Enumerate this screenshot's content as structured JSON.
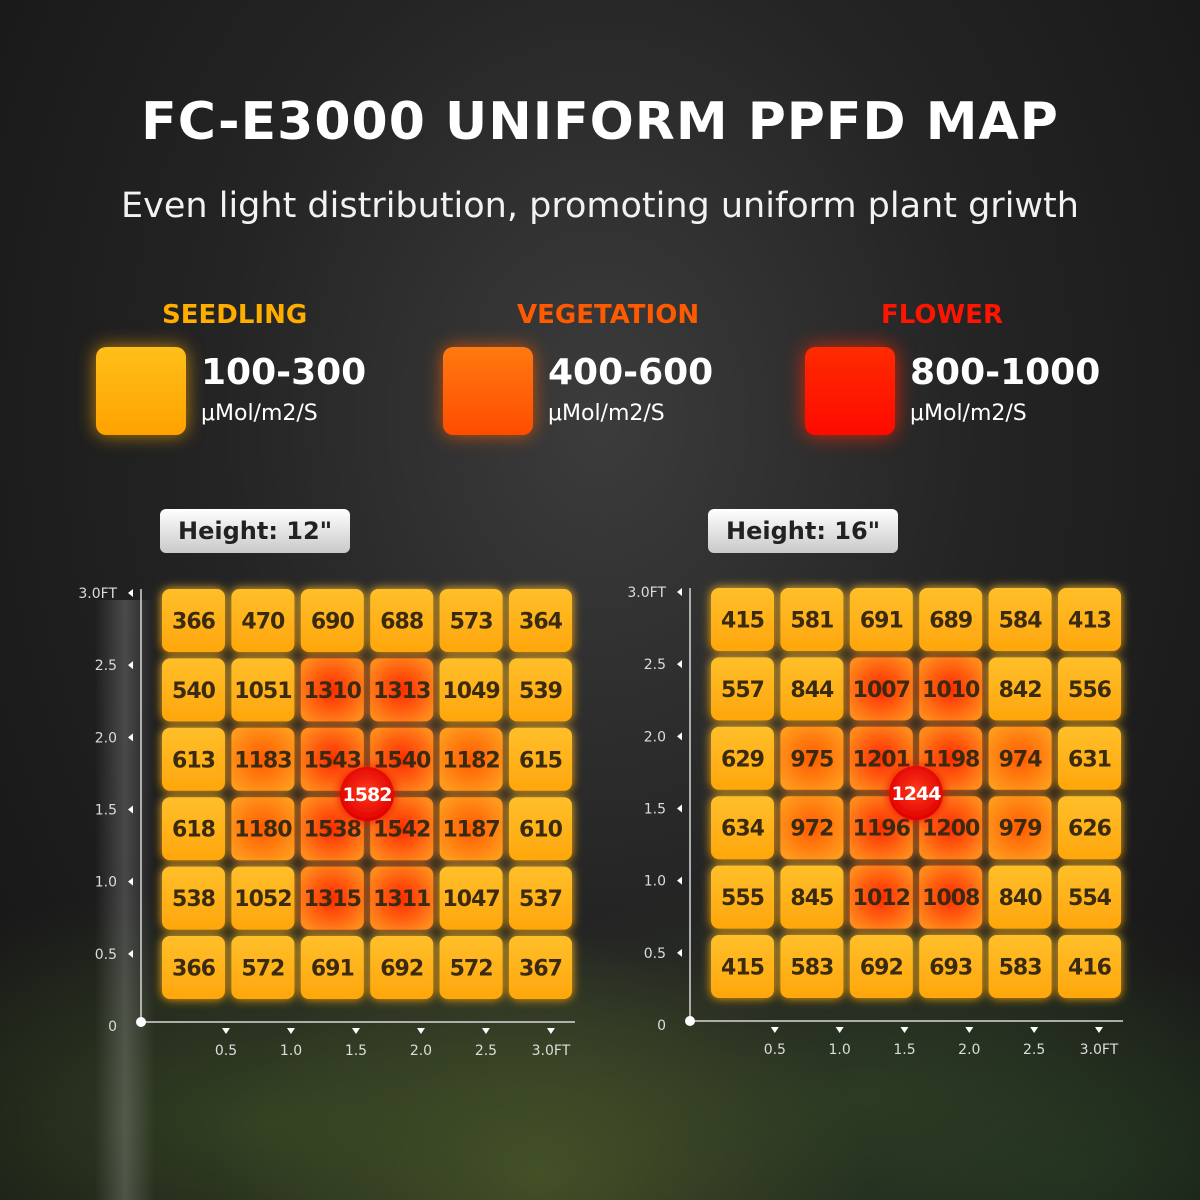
{
  "header": {
    "title": "FC-E3000 UNIFORM PPFD MAP",
    "subtitle": "Even light distribution, promoting uniform plant griwth"
  },
  "legend": [
    {
      "name": "SEEDLING",
      "range": "100-300",
      "unit": "μMol/m2/S",
      "color": "#ffae00"
    },
    {
      "name": "VEGETATION",
      "range": "400-600",
      "unit": "μMol/m2/S",
      "color": "#ff5a00"
    },
    {
      "name": "FLOWER",
      "range": "800-1000",
      "unit": "μMol/m2/S",
      "color": "#ff1400"
    }
  ],
  "chart_data": [
    {
      "type": "heatmap",
      "title": "Height: 12\"",
      "x_ticks": [
        "0.5",
        "1.0",
        "1.5",
        "2.0",
        "2.5",
        "3.0FT"
      ],
      "y_ticks": [
        "0",
        "0.5",
        "1.0",
        "1.5",
        "2.0",
        "2.5",
        "3.0FT"
      ],
      "xlim": [
        0,
        3.0
      ],
      "ylim": [
        0,
        3.0
      ],
      "center_value": "1582",
      "values": [
        [
          366,
          470,
          690,
          688,
          573,
          364
        ],
        [
          540,
          1051,
          1310,
          1313,
          1049,
          539
        ],
        [
          613,
          1183,
          1543,
          1540,
          1182,
          615
        ],
        [
          618,
          1180,
          1538,
          1542,
          1187,
          610
        ],
        [
          538,
          1052,
          1315,
          1311,
          1047,
          537
        ],
        [
          366,
          572,
          691,
          692,
          572,
          367
        ]
      ]
    },
    {
      "type": "heatmap",
      "title": "Height: 16\"",
      "x_ticks": [
        "0.5",
        "1.0",
        "1.5",
        "2.0",
        "2.5",
        "3.0FT"
      ],
      "y_ticks": [
        "0",
        "0.5",
        "1.0",
        "1.5",
        "2.0",
        "2.5",
        "3.0FT"
      ],
      "xlim": [
        0,
        3.0
      ],
      "ylim": [
        0,
        3.0
      ],
      "center_value": "1244",
      "values": [
        [
          415,
          581,
          691,
          689,
          584,
          413
        ],
        [
          557,
          844,
          1007,
          1010,
          842,
          556
        ],
        [
          629,
          975,
          1201,
          1198,
          974,
          631
        ],
        [
          634,
          972,
          1196,
          1200,
          979,
          626
        ],
        [
          555,
          845,
          1012,
          1008,
          840,
          554
        ],
        [
          415,
          583,
          692,
          693,
          583,
          416
        ]
      ]
    }
  ]
}
